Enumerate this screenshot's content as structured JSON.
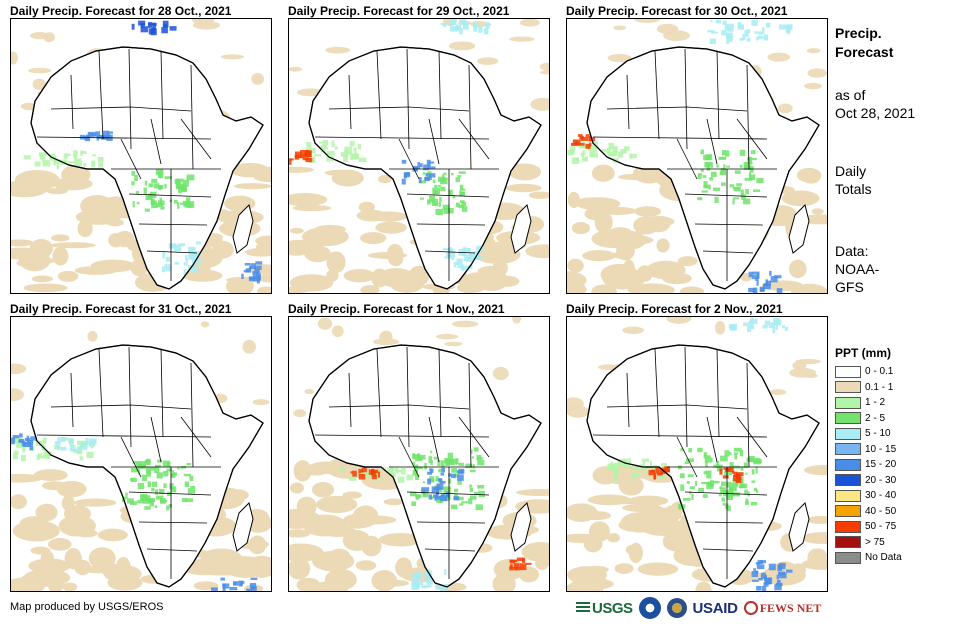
{
  "panels": [
    {
      "title": "Daily Precip. Forecast for 28 Oct., 2021"
    },
    {
      "title": "Daily Precip. Forecast for 29 Oct., 2021"
    },
    {
      "title": "Daily Precip. Forecast for 30 Oct., 2021"
    },
    {
      "title": "Daily Precip. Forecast for 31 Oct., 2021"
    },
    {
      "title": "Daily Precip. Forecast for 1 Nov., 2021"
    },
    {
      "title": "Daily Precip. Forecast for 2 Nov., 2021"
    }
  ],
  "side": {
    "title_line1": "Precip.",
    "title_line2": "Forecast",
    "asof_line1": "as of",
    "asof_line2": "Oct 28, 2021",
    "totals_line1": "Daily",
    "totals_line2": "Totals",
    "data_line1": "Data:",
    "data_line2": "NOAA-",
    "data_line3": "GFS"
  },
  "legend": {
    "title": "PPT (mm)",
    "items": [
      {
        "label": "0 - 0.1",
        "color": "#ffffff"
      },
      {
        "label": "0.1 - 1",
        "color": "#ecd9b5"
      },
      {
        "label": "1 - 2",
        "color": "#b3f5a8"
      },
      {
        "label": "2 - 5",
        "color": "#6fe36a"
      },
      {
        "label": "5 - 10",
        "color": "#a8ecf5"
      },
      {
        "label": "10 - 15",
        "color": "#79b6f0"
      },
      {
        "label": "15 - 20",
        "color": "#4a8de8"
      },
      {
        "label": "20 - 30",
        "color": "#1c52d8"
      },
      {
        "label": "30 - 40",
        "color": "#fce784"
      },
      {
        "label": "40 - 50",
        "color": "#f5a300"
      },
      {
        "label": "50 - 75",
        "color": "#f53d00"
      },
      {
        "label": "> 75",
        "color": "#a31010"
      },
      {
        "label": "No Data",
        "color": "#8c8c8c"
      }
    ]
  },
  "footer": {
    "credit": "Map produced by USGS/EROS",
    "logo_usgs": "USGS",
    "logo_usaid": "USAID",
    "logo_fews": "FEWS NET"
  },
  "colors": {
    "land": "#ffffff",
    "border": "#000000",
    "dry": "#ecd9b5",
    "light_green": "#b3f5a8",
    "green": "#6fe36a",
    "cyan": "#a8ecf5",
    "blue": "#4a8de8",
    "dark_blue": "#1c52d8",
    "red": "#f53d00"
  }
}
